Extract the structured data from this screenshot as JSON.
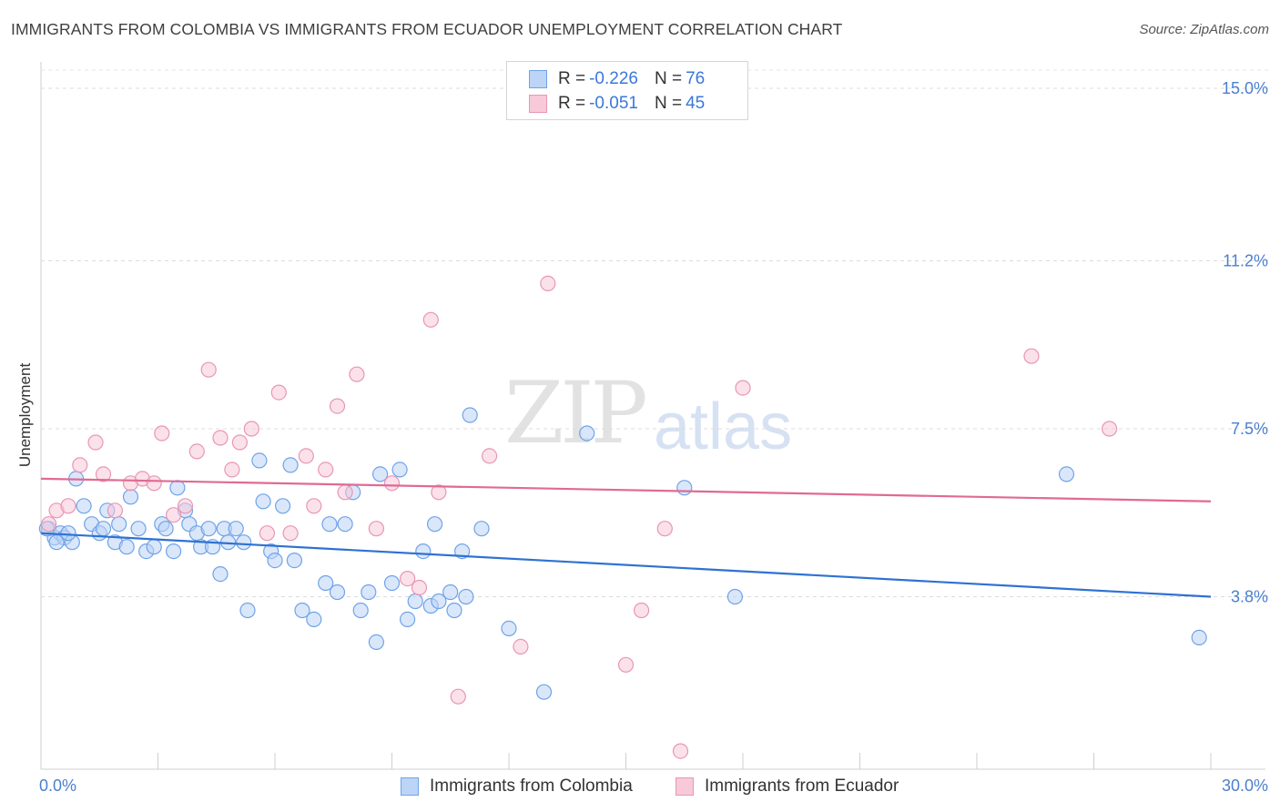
{
  "header": {
    "title": "IMMIGRANTS FROM COLOMBIA VS IMMIGRANTS FROM ECUADOR UNEMPLOYMENT CORRELATION CHART",
    "source": "Source: ZipAtlas.com"
  },
  "watermark": {
    "zip": "ZIP",
    "atlas": "atlas"
  },
  "legend": {
    "rows": [
      {
        "r_label": "R =",
        "r_value": "-0.226",
        "n_label": "N =",
        "n_value": "76"
      },
      {
        "r_label": "R =",
        "r_value": "-0.051",
        "n_label": "N =",
        "n_value": "45"
      }
    ]
  },
  "bottom_legend": {
    "items": [
      "Immigrants from Colombia",
      "Immigrants from Ecuador"
    ]
  },
  "colors": {
    "colombia": "#6fa3e8",
    "colombia_fill": "#bcd4f5",
    "ecuador": "#e996b4",
    "ecuador_fill": "#f7c9d9",
    "trend_blue": "#2f72d1",
    "trend_pink": "#e06a93",
    "tick_text": "#4a7fd0"
  },
  "chart_data": {
    "type": "scatter",
    "title": "IMMIGRANTS FROM COLOMBIA VS IMMIGRANTS FROM ECUADOR UNEMPLOYMENT CORRELATION CHART",
    "xlabel": "",
    "ylabel": "Unemployment",
    "xlim": [
      0,
      30
    ],
    "ylim": [
      0,
      15.5
    ],
    "x_tick_labels": [
      "0.0%",
      "30.0%"
    ],
    "y_ticks": [
      3.8,
      7.5,
      11.2,
      15.0
    ],
    "y_tick_labels": [
      "3.8%",
      "7.5%",
      "11.2%",
      "15.0%"
    ],
    "grid": true,
    "series": [
      {
        "name": "Immigrants from Colombia",
        "r": -0.226,
        "n": 76,
        "trend": {
          "x": [
            0,
            30
          ],
          "y": [
            5.2,
            3.8
          ]
        },
        "points": [
          [
            0.2,
            5.3
          ],
          [
            0.35,
            5.1
          ],
          [
            0.5,
            5.2
          ],
          [
            0.6,
            5.1
          ],
          [
            0.8,
            5.0
          ],
          [
            0.9,
            6.4
          ],
          [
            1.1,
            5.8
          ],
          [
            1.3,
            5.4
          ],
          [
            1.5,
            5.2
          ],
          [
            1.6,
            5.3
          ],
          [
            1.7,
            5.7
          ],
          [
            1.9,
            5.0
          ],
          [
            2.0,
            5.4
          ],
          [
            2.2,
            4.9
          ],
          [
            2.3,
            6.0
          ],
          [
            2.5,
            5.3
          ],
          [
            2.7,
            4.8
          ],
          [
            2.9,
            4.9
          ],
          [
            3.1,
            5.4
          ],
          [
            3.2,
            5.3
          ],
          [
            3.4,
            4.8
          ],
          [
            3.5,
            6.2
          ],
          [
            3.7,
            5.7
          ],
          [
            3.8,
            5.4
          ],
          [
            4.0,
            5.2
          ],
          [
            4.1,
            4.9
          ],
          [
            4.3,
            5.3
          ],
          [
            4.4,
            4.9
          ],
          [
            4.6,
            4.3
          ],
          [
            4.7,
            5.3
          ],
          [
            4.8,
            5.0
          ],
          [
            5.0,
            5.3
          ],
          [
            5.2,
            5.0
          ],
          [
            5.3,
            3.5
          ],
          [
            5.6,
            6.8
          ],
          [
            5.7,
            5.9
          ],
          [
            5.9,
            4.8
          ],
          [
            6.0,
            4.6
          ],
          [
            6.2,
            5.8
          ],
          [
            6.4,
            6.7
          ],
          [
            6.5,
            4.6
          ],
          [
            6.7,
            3.5
          ],
          [
            7.0,
            3.3
          ],
          [
            7.3,
            4.1
          ],
          [
            7.4,
            5.4
          ],
          [
            7.6,
            3.9
          ],
          [
            7.8,
            5.4
          ],
          [
            8.0,
            6.1
          ],
          [
            8.2,
            3.5
          ],
          [
            8.4,
            3.9
          ],
          [
            8.6,
            2.8
          ],
          [
            8.7,
            6.5
          ],
          [
            9.0,
            4.1
          ],
          [
            9.2,
            6.6
          ],
          [
            9.4,
            3.3
          ],
          [
            9.6,
            3.7
          ],
          [
            9.8,
            4.8
          ],
          [
            10.0,
            3.6
          ],
          [
            10.1,
            5.4
          ],
          [
            10.2,
            3.7
          ],
          [
            10.5,
            3.9
          ],
          [
            10.6,
            3.5
          ],
          [
            10.8,
            4.8
          ],
          [
            10.9,
            3.8
          ],
          [
            11.0,
            7.8
          ],
          [
            11.3,
            5.3
          ],
          [
            12.0,
            3.1
          ],
          [
            12.9,
            1.7
          ],
          [
            14.0,
            7.4
          ],
          [
            16.5,
            6.2
          ],
          [
            17.8,
            3.8
          ],
          [
            26.3,
            6.5
          ],
          [
            29.7,
            2.9
          ],
          [
            0.15,
            5.3
          ],
          [
            0.4,
            5.0
          ],
          [
            0.7,
            5.2
          ]
        ]
      },
      {
        "name": "Immigrants from Ecuador",
        "r": -0.051,
        "n": 45,
        "trend": {
          "x": [
            0,
            30
          ],
          "y": [
            6.4,
            5.9
          ]
        },
        "points": [
          [
            0.2,
            5.4
          ],
          [
            0.4,
            5.7
          ],
          [
            0.7,
            5.8
          ],
          [
            1.0,
            6.7
          ],
          [
            1.4,
            7.2
          ],
          [
            1.6,
            6.5
          ],
          [
            1.9,
            5.7
          ],
          [
            2.3,
            6.3
          ],
          [
            2.6,
            6.4
          ],
          [
            2.9,
            6.3
          ],
          [
            3.1,
            7.4
          ],
          [
            3.4,
            5.6
          ],
          [
            3.7,
            5.8
          ],
          [
            4.0,
            7.0
          ],
          [
            4.3,
            8.8
          ],
          [
            4.6,
            7.3
          ],
          [
            4.9,
            6.6
          ],
          [
            5.1,
            7.2
          ],
          [
            5.4,
            7.5
          ],
          [
            5.8,
            5.2
          ],
          [
            6.1,
            8.3
          ],
          [
            6.4,
            5.2
          ],
          [
            6.8,
            6.9
          ],
          [
            7.0,
            5.8
          ],
          [
            7.3,
            6.6
          ],
          [
            7.6,
            8.0
          ],
          [
            7.8,
            6.1
          ],
          [
            8.1,
            8.7
          ],
          [
            8.6,
            5.3
          ],
          [
            9.0,
            6.3
          ],
          [
            9.4,
            4.2
          ],
          [
            9.7,
            4.0
          ],
          [
            10.0,
            9.9
          ],
          [
            10.2,
            6.1
          ],
          [
            10.7,
            1.6
          ],
          [
            11.5,
            6.9
          ],
          [
            12.3,
            2.7
          ],
          [
            13.0,
            10.7
          ],
          [
            15.0,
            2.3
          ],
          [
            15.4,
            3.5
          ],
          [
            16.0,
            5.3
          ],
          [
            16.4,
            0.4
          ],
          [
            18.0,
            8.4
          ],
          [
            25.4,
            9.1
          ],
          [
            27.4,
            7.5
          ]
        ]
      }
    ]
  }
}
